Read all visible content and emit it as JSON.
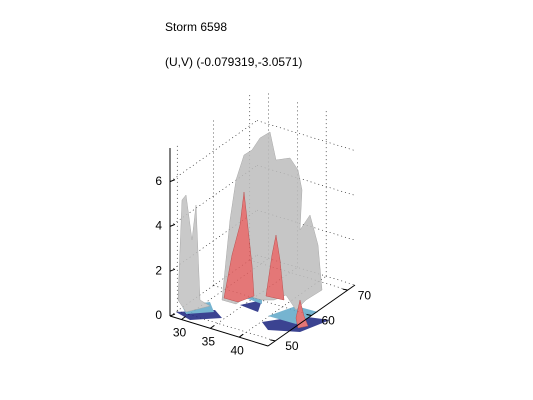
{
  "chart_data": {
    "type": "surface",
    "title": "Storm 6598",
    "subtitle": "(U,V) (-0.079319,-3.0571)",
    "xlim": [
      28,
      45
    ],
    "xticks": [
      30,
      35,
      40
    ],
    "ylim": [
      48,
      72
    ],
    "yticks": [
      50,
      60,
      70
    ],
    "zlim": [
      0,
      7.5
    ],
    "zticks": [
      0,
      2,
      4,
      6
    ],
    "grid": true
  }
}
